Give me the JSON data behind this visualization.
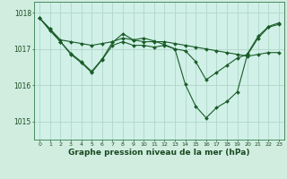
{
  "bg_color": "#d0ede0",
  "plot_bg_color": "#d0f0e8",
  "grid_color": "#b0d8c8",
  "line_color": "#1a5c28",
  "marker_color": "#1a5c28",
  "xlabel": "Graphe pression niveau de la mer (hPa)",
  "xlim": [
    -0.5,
    23.5
  ],
  "ylim": [
    1014.5,
    1018.3
  ],
  "yticks": [
    1015,
    1016,
    1017,
    1018
  ],
  "xticks": [
    0,
    1,
    2,
    3,
    4,
    5,
    6,
    7,
    8,
    9,
    10,
    11,
    12,
    13,
    14,
    15,
    16,
    17,
    18,
    19,
    20,
    21,
    22,
    23
  ],
  "series": [
    {
      "x": [
        0,
        1,
        2,
        3,
        4,
        5,
        6,
        7,
        8,
        9,
        10,
        11,
        12,
        13,
        14,
        15,
        16,
        17,
        18,
        19,
        20,
        21,
        22,
        23
      ],
      "y": [
        1017.85,
        1017.55,
        1017.25,
        1017.2,
        1017.15,
        1017.1,
        1017.15,
        1017.2,
        1017.3,
        1017.25,
        1017.2,
        1017.2,
        1017.2,
        1017.15,
        1017.1,
        1017.05,
        1017.0,
        1016.95,
        1016.9,
        1016.85,
        1016.8,
        1016.85,
        1016.9,
        1016.9
      ]
    },
    {
      "x": [
        0,
        1,
        2,
        3,
        4,
        5,
        6,
        7,
        8,
        9,
        10,
        11,
        12,
        13,
        14,
        15,
        16,
        17,
        18,
        19,
        20,
        21,
        22,
        23
      ],
      "y": [
        1017.85,
        1017.55,
        1017.2,
        1016.85,
        1016.62,
        1016.35,
        1016.7,
        1017.1,
        1017.2,
        1017.1,
        1017.1,
        1017.05,
        1017.1,
        1017.0,
        1016.95,
        1016.65,
        1016.15,
        1016.35,
        1016.55,
        1016.75,
        1016.85,
        1017.3,
        1017.6,
        1017.68
      ]
    },
    {
      "x": [
        0,
        1,
        2,
        3,
        4,
        5,
        6,
        7,
        8,
        9,
        10,
        11,
        12,
        13,
        14,
        15,
        16,
        17,
        18,
        19,
        20,
        21,
        22,
        23
      ],
      "y": [
        1017.85,
        1017.5,
        1017.2,
        1016.88,
        1016.65,
        1016.38,
        1016.72,
        1017.18,
        1017.42,
        1017.25,
        1017.3,
        1017.22,
        1017.12,
        1017.0,
        1016.02,
        1015.42,
        1015.1,
        1015.38,
        1015.55,
        1015.82,
        1016.88,
        1017.35,
        1017.62,
        1017.72
      ]
    }
  ]
}
